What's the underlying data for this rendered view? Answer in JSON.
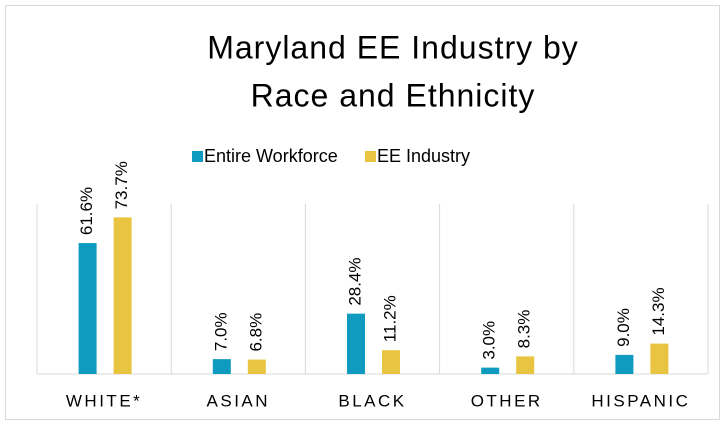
{
  "chart_data": {
    "type": "bar",
    "title": [
      "Maryland EE Industry by",
      "Race and Ethnicity"
    ],
    "categories": [
      "WHITE*",
      "ASIAN",
      "BLACK",
      "OTHER",
      "HISPANIC"
    ],
    "series": [
      {
        "name": "Entire Workforce",
        "color": "#0f9bbf",
        "values": [
          61.6,
          7.0,
          28.4,
          3.0,
          9.0
        ],
        "value_labels": [
          "61.6%",
          "7.0%",
          "28.4%",
          "3.0%",
          "9.0%"
        ]
      },
      {
        "name": "EE Industry",
        "color": "#e8c440",
        "values": [
          73.7,
          6.8,
          11.2,
          8.3,
          14.3
        ],
        "value_labels": [
          "73.7%",
          "6.8%",
          "11.2%",
          "8.3%",
          "14.3%"
        ]
      }
    ],
    "ylim": [
      0,
      80
    ]
  }
}
